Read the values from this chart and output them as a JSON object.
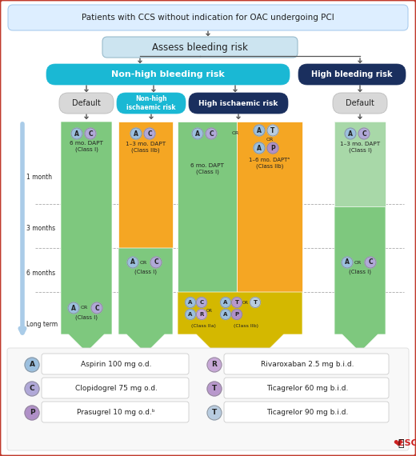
{
  "title_text": "Patients with CCS without indication for OAC undergoing PCI",
  "bleeding_text": "Assess bleeding risk",
  "non_high_text": "Non-high bleeding risk",
  "high_text": "High bleeding risk",
  "border_color": "#c0392b",
  "title_bg": "#ddeeff",
  "bleeding_bg": "#cce4f0",
  "non_high_bg": "#1ab8d4",
  "high_bg": "#1a2f5e",
  "green_col": "#7ec87e",
  "green_light": "#a8d8a8",
  "orange_col": "#f5a623",
  "gold_col": "#d4b800",
  "circ_A": "#9bbfde",
  "circ_C": "#b0a8d8",
  "circ_P": "#b090c8",
  "circ_R": "#c8a8d8",
  "circ_T60": "#b898cc",
  "circ_T90": "#b8cce0",
  "circ_edge": "#888888",
  "default_bg": "#d8d8d8",
  "time_arrow_color": "#aacce8",
  "dash_color": "#aaaaaa",
  "text_dark": "#222222",
  "text_mid": "#444444"
}
